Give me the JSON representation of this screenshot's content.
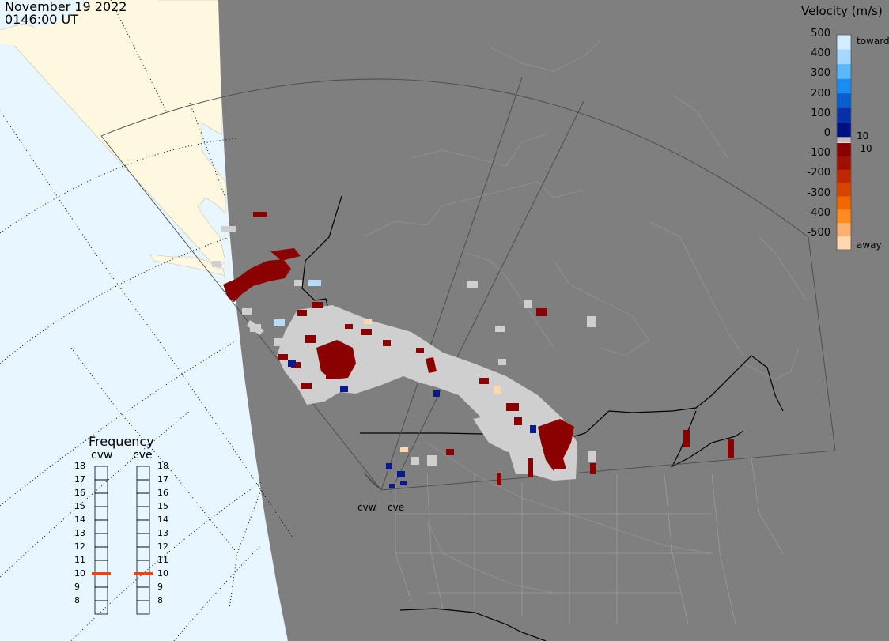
{
  "header": {
    "date": "November 19 2022",
    "time": "0146:00 UT"
  },
  "velocity_legend": {
    "title": "Velocity (m/s)",
    "ticks": [
      "500",
      "400",
      "300",
      "200",
      "100",
      "0",
      "-100",
      "-200",
      "-300",
      "-400",
      "-500"
    ],
    "toward_label": "toward",
    "away_label": "away",
    "band_pos": "10",
    "band_neg": "-10",
    "colors_toward": [
      "#d4ecff",
      "#a6d8ff",
      "#5ab8ff",
      "#1a8ef0",
      "#0a5ed0",
      "#0830a8",
      "#001080"
    ],
    "colors_away": [
      "#8b0000",
      "#a01000",
      "#c02800",
      "#d84400",
      "#f06800",
      "#ff8c20",
      "#ffb070",
      "#ffd8b0"
    ],
    "zero_color": "#bebebe"
  },
  "frequency_legend": {
    "title": "Frequency",
    "radars": [
      "cvw",
      "cve"
    ],
    "scale": [
      "18",
      "17",
      "16",
      "15",
      "14",
      "13",
      "12",
      "11",
      "10",
      "9",
      "8"
    ],
    "cvw_mhz": 10.5,
    "cve_mhz": 10.5,
    "marker_color": "#e0461e"
  },
  "radar_labels": [
    "cvw",
    "cve"
  ],
  "map_colors": {
    "ocean": "#e8f6ff",
    "land_day": "#fff8e1",
    "night": "#7f7f7f"
  }
}
